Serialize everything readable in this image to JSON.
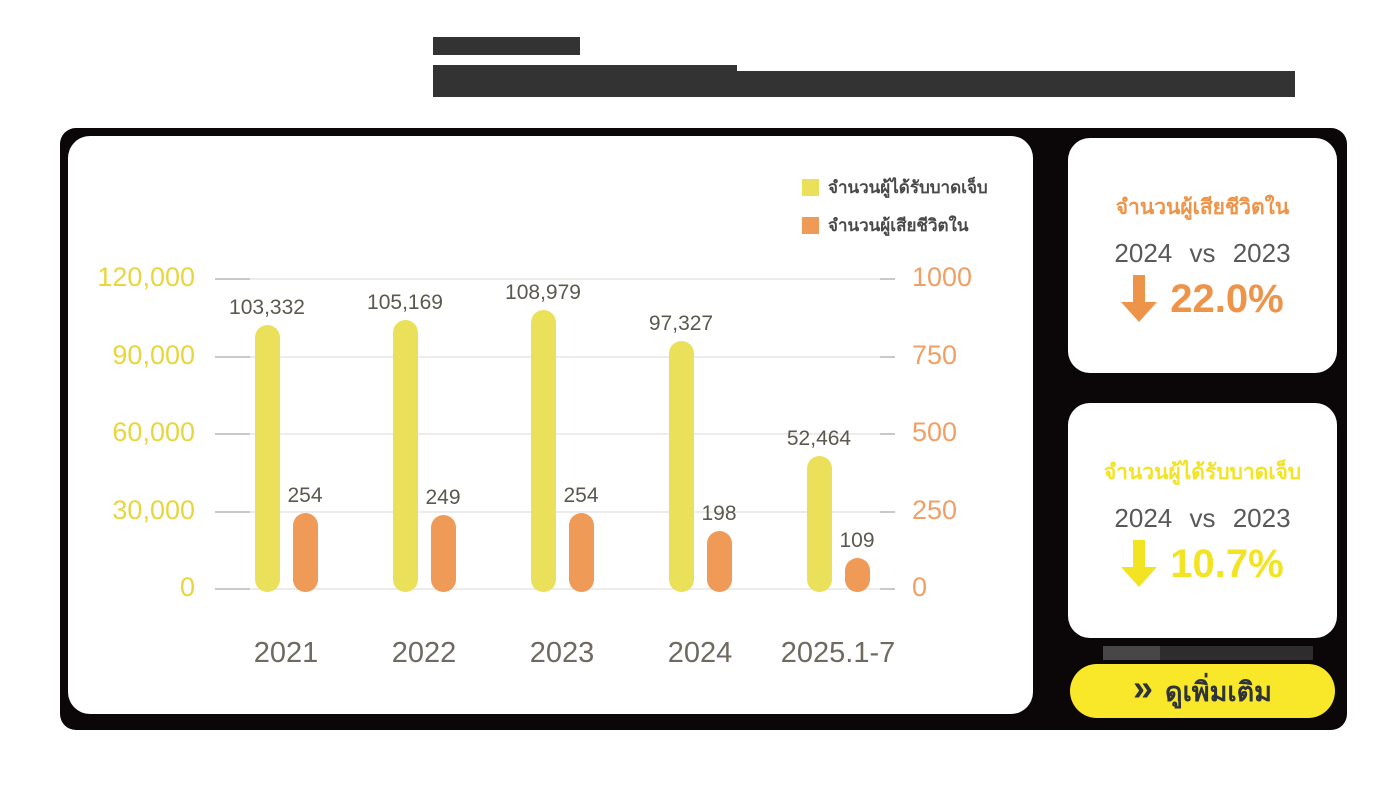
{
  "chart_data": {
    "type": "bar",
    "title": "",
    "categories": [
      "2021",
      "2022",
      "2023",
      "2024",
      "2025.1-7"
    ],
    "series": [
      {
        "name": "จำนวนผู้ได้รับบาดเจ็บ",
        "axis": "left",
        "color": "#ebe05a",
        "values": [
          103332,
          105169,
          108979,
          97327,
          52464
        ],
        "labels": [
          "103,332",
          "105,169",
          "108,979",
          "97,327",
          "52,464"
        ]
      },
      {
        "name": "จำนวนผู้เสียชีวิตใน",
        "axis": "right",
        "color": "#f09a58",
        "values": [
          254,
          249,
          254,
          198,
          109
        ],
        "labels": [
          "254",
          "249",
          "254",
          "198",
          "109"
        ]
      }
    ],
    "left_axis": {
      "max": 120000,
      "ticks": [
        120000,
        90000,
        60000,
        30000,
        0
      ],
      "tick_labels": [
        "120,000",
        "90,000",
        "60,000",
        "30,000",
        "0"
      ],
      "color": "#e8d63e"
    },
    "right_axis": {
      "max": 1000,
      "ticks": [
        1000,
        750,
        500,
        250,
        0
      ],
      "tick_labels": [
        "1000",
        "750",
        "500",
        "250",
        "0"
      ],
      "color": "#f0a066"
    },
    "grid": true,
    "legend_position": "top-right"
  },
  "stat_cards": [
    {
      "title": "จำนวนผู้เสียชีวิตใน",
      "comparison": "2024 vs 2023",
      "change": "22.0%",
      "direction": "down",
      "accent_color": "#ee9449"
    },
    {
      "title": "จำนวนผู้ได้รับบาดเจ็บ",
      "comparison": "2024 vs 2023",
      "change": "10.7%",
      "direction": "down",
      "accent_color": "#f2e422"
    }
  ],
  "see_more_button": {
    "label": "ดูเพิ่มเติม",
    "icon": "double-chevron-right",
    "icon_glyph": "»",
    "bg_color": "#f9e829",
    "text_color": "#2d3338"
  }
}
